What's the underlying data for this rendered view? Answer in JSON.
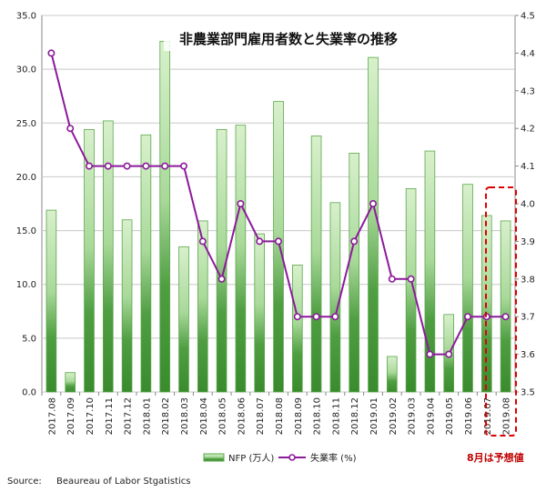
{
  "chart_data": {
    "type": "bar+line",
    "title": "非農業部門雇用者数と失業率の推移",
    "categories": [
      "2017.08",
      "2017.09",
      "2017.10",
      "2017.11",
      "2017.12",
      "2018.01",
      "2018.02",
      "2018.03",
      "2018.04",
      "2018.05",
      "2018.06",
      "2018.07",
      "2018.08",
      "2018.09",
      "2018.10",
      "2018.11",
      "2018.12",
      "2019.01",
      "2019.02",
      "2019.03",
      "2019.04",
      "2019.05",
      "2019.06",
      "2019.07",
      "2019.08"
    ],
    "series": [
      {
        "name": "NFP (万人)",
        "type": "bar",
        "axis": "left",
        "values": [
          16.9,
          1.8,
          24.4,
          25.2,
          16.0,
          23.9,
          32.6,
          13.5,
          15.9,
          24.4,
          24.8,
          14.7,
          27.0,
          11.8,
          23.8,
          17.6,
          22.2,
          31.1,
          3.3,
          18.9,
          22.4,
          7.2,
          19.3,
          16.4,
          15.9
        ]
      },
      {
        "name": "失業率 (%)",
        "type": "line",
        "axis": "right",
        "values": [
          4.4,
          4.2,
          4.1,
          4.1,
          4.1,
          4.1,
          4.1,
          4.1,
          3.9,
          3.8,
          4.0,
          3.9,
          3.9,
          3.7,
          3.7,
          3.7,
          3.9,
          4.0,
          3.8,
          3.8,
          3.6,
          3.6,
          3.7,
          3.7,
          3.7
        ]
      }
    ],
    "yleft": {
      "min": 0,
      "max": 35,
      "step": 5,
      "ticks": [
        "0.0",
        "5.0",
        "10.0",
        "15.0",
        "20.0",
        "25.0",
        "30.0",
        "35.0"
      ]
    },
    "yright": {
      "min": 3.5,
      "max": 4.5,
      "step": 0.1,
      "ticks": [
        "3.5",
        "3.6",
        "3.7",
        "3.8",
        "3.9",
        "4.0",
        "4.1",
        "4.2",
        "4.3",
        "4.4",
        "4.5"
      ]
    },
    "grid": true,
    "legend_position": "bottom",
    "highlight_category": "2019.08",
    "colors": {
      "bar_light": "#c6e7b8",
      "bar_dark": "#3e8e32",
      "bar_border": "#5aa84a",
      "line": "#8b1a9a",
      "highlight": "#dd0000",
      "grid": "#c8c8c8"
    }
  },
  "annotation": {
    "forecast_note": "8月は予想値"
  },
  "source": {
    "label": "Source:",
    "text": "Beaureau of Labor Stgatistics"
  }
}
